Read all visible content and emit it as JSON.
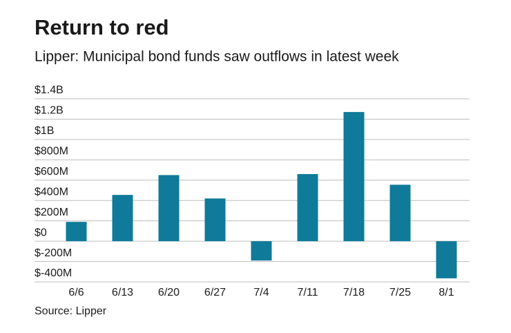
{
  "chart_data": {
    "type": "bar",
    "title": "Return to red",
    "subtitle": "Lipper: Municipal bond funds saw outflows in latest week",
    "source": "Source: Lipper",
    "categories": [
      "6/6",
      "6/13",
      "6/20",
      "6/27",
      "7/4",
      "7/11",
      "7/18",
      "7/25",
      "8/1"
    ],
    "values": [
      190000000,
      455000000,
      650000000,
      420000000,
      -190000000,
      660000000,
      1270000000,
      555000000,
      -365000000
    ],
    "color": "#0f7a99",
    "ylim": [
      -400000000,
      1400000000
    ],
    "yticks": [
      {
        "value": 1400000000,
        "label": "$1.4B"
      },
      {
        "value": 1200000000,
        "label": "$1.2B"
      },
      {
        "value": 1000000000,
        "label": "$1B"
      },
      {
        "value": 800000000,
        "label": "$800M"
      },
      {
        "value": 600000000,
        "label": "$600M"
      },
      {
        "value": 400000000,
        "label": "$400M"
      },
      {
        "value": 200000000,
        "label": "$200M"
      },
      {
        "value": 0,
        "label": "$0"
      },
      {
        "value": -200000000,
        "label": "$-200M"
      },
      {
        "value": -400000000,
        "label": "$-400M"
      }
    ],
    "grid": true
  }
}
